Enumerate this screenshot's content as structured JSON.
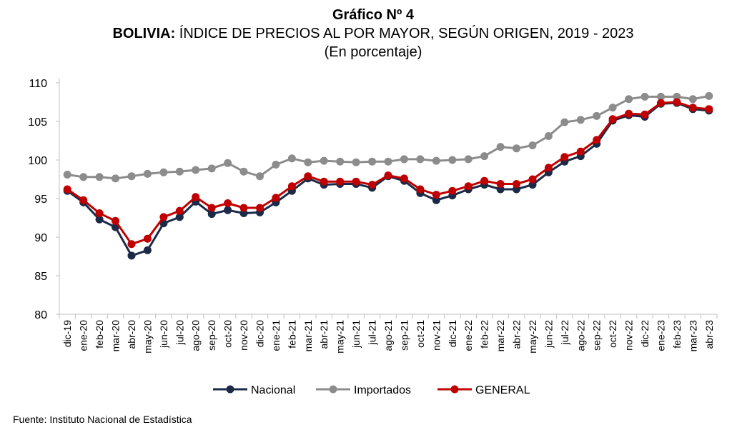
{
  "header": {
    "figure_label": "Gráfico Nº 4",
    "country": "BOLIVIA:",
    "title_rest": " ÍNDICE DE PRECIOS AL POR MAYOR, SEGÚN ORIGEN, 2019 - 2023",
    "subtitle": "(En porcentaje)"
  },
  "source": "Fuente: Instituto Nacional de Estadística",
  "colors": {
    "nacional": "#1b2a47",
    "importados": "#8c8c8c",
    "general": "#c00000",
    "axis": "#bfbfbf",
    "text": "#000000"
  },
  "chart_data": {
    "type": "line",
    "title": "BOLIVIA: ÍNDICE DE PRECIOS AL POR MAYOR, SEGÚN ORIGEN, 2019 - 2023",
    "subtitle": "(En porcentaje)",
    "xlabel": "",
    "ylabel": "",
    "ylim": [
      80,
      110
    ],
    "yticks": [
      80,
      85,
      90,
      95,
      100,
      105,
      110
    ],
    "grid": false,
    "legend": "bottom",
    "categories": [
      "dic-19",
      "ene-20",
      "feb-20",
      "mar-20",
      "abr-20",
      "may-20",
      "jun-20",
      "jul-20",
      "ago-20",
      "sep-20",
      "oct-20",
      "nov-20",
      "dic-20",
      "ene-21",
      "feb-21",
      "mar-21",
      "abr-21",
      "may-21",
      "jun-21",
      "jul-21",
      "ago-21",
      "sep-21",
      "oct-21",
      "nov-21",
      "dic-21",
      "ene-22",
      "feb-22",
      "mar-22",
      "abr-22",
      "may-22",
      "jun-22",
      "jul-22",
      "ago-22",
      "sep-22",
      "oct-22",
      "nov-22",
      "dic-22",
      "ene-23",
      "feb-23",
      "mar-23",
      "abr-23"
    ],
    "series": [
      {
        "name": "Nacional",
        "key": "nacional",
        "values": [
          96.0,
          94.5,
          92.3,
          91.3,
          87.6,
          88.3,
          91.8,
          92.6,
          94.6,
          93.0,
          93.5,
          93.1,
          93.2,
          94.5,
          96.0,
          97.6,
          96.8,
          96.9,
          96.9,
          96.4,
          97.9,
          97.3,
          95.7,
          94.8,
          95.4,
          96.2,
          96.8,
          96.2,
          96.2,
          96.8,
          98.4,
          99.8,
          100.5,
          102.1,
          105.1,
          105.8,
          105.6,
          107.3,
          107.4,
          106.6,
          106.4
        ]
      },
      {
        "name": "Importados",
        "key": "importados",
        "values": [
          98.1,
          97.8,
          97.8,
          97.6,
          97.9,
          98.2,
          98.4,
          98.5,
          98.7,
          98.9,
          99.6,
          98.5,
          97.9,
          99.4,
          100.2,
          99.7,
          99.9,
          99.8,
          99.7,
          99.8,
          99.8,
          100.1,
          100.1,
          99.9,
          100.0,
          100.1,
          100.5,
          101.7,
          101.5,
          101.9,
          103.1,
          104.9,
          105.2,
          105.7,
          106.8,
          107.9,
          108.2,
          108.2,
          108.2,
          107.9,
          108.3
        ]
      },
      {
        "name": "GENERAL",
        "key": "general",
        "values": [
          96.2,
          94.8,
          93.1,
          92.1,
          89.1,
          89.8,
          92.6,
          93.4,
          95.2,
          93.8,
          94.4,
          93.8,
          93.8,
          95.1,
          96.6,
          97.9,
          97.2,
          97.2,
          97.2,
          96.8,
          98.0,
          97.6,
          96.2,
          95.5,
          96.0,
          96.6,
          97.3,
          96.9,
          96.9,
          97.5,
          99.0,
          100.4,
          101.1,
          102.6,
          105.3,
          106.0,
          105.9,
          107.4,
          107.5,
          106.8,
          106.6
        ]
      }
    ]
  }
}
